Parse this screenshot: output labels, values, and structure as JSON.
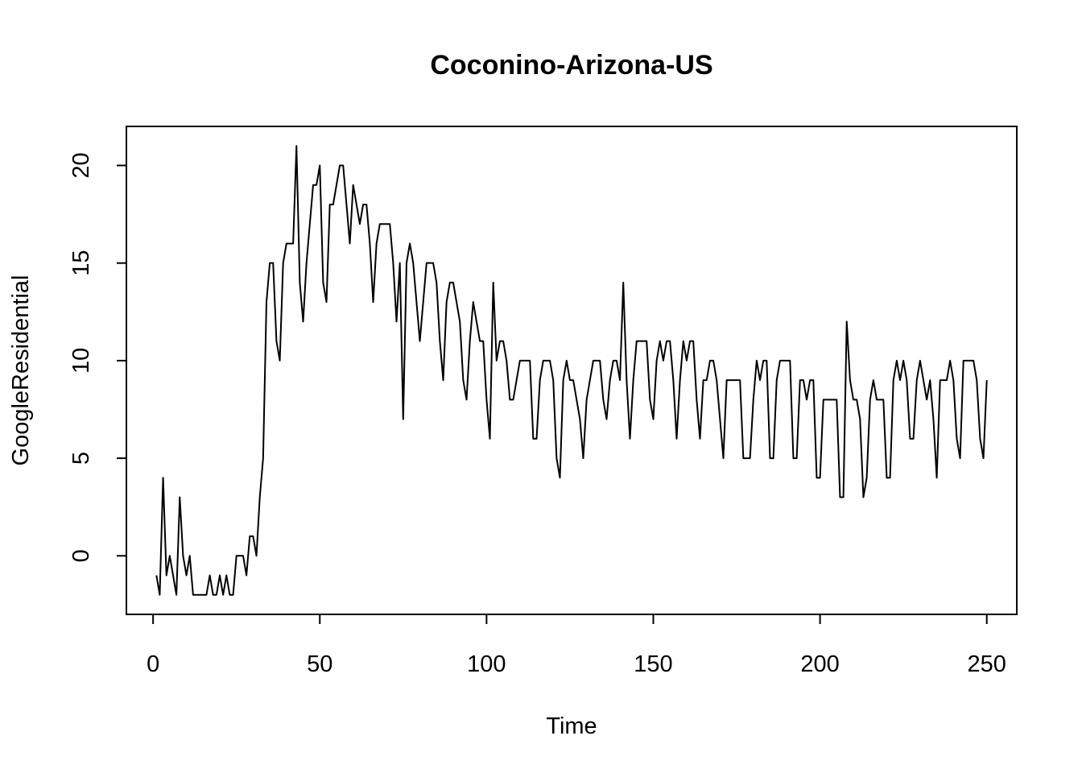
{
  "chart_data": {
    "type": "line",
    "title": "Coconino-Arizona-US",
    "xlabel": "Time",
    "ylabel": "GoogleResidential",
    "xlim": [
      -8,
      259
    ],
    "ylim": [
      -3,
      22
    ],
    "xticks": [
      0,
      50,
      100,
      150,
      200,
      250
    ],
    "yticks": [
      0,
      5,
      10,
      15,
      20
    ],
    "grid": false,
    "series": [
      {
        "name": "GoogleResidential",
        "x_start": 1,
        "values": [
          -1,
          -2,
          4,
          -1,
          0,
          -1,
          -2,
          3,
          0,
          -1,
          0,
          -2,
          -2,
          -2,
          -2,
          -2,
          -1,
          -2,
          -2,
          -1,
          -2,
          -1,
          -2,
          -2,
          0,
          0,
          0,
          -1,
          1,
          1,
          0,
          3,
          5,
          13,
          15,
          15,
          11,
          10,
          15,
          16,
          16,
          16,
          21,
          14,
          12,
          15,
          17,
          19,
          19,
          20,
          14,
          13,
          18,
          18,
          19,
          20,
          20,
          18,
          16,
          19,
          18,
          17,
          18,
          18,
          16,
          13,
          16,
          17,
          17,
          17,
          17,
          15,
          12,
          15,
          7,
          15,
          16,
          15,
          13,
          11,
          13,
          15,
          15,
          15,
          14,
          11,
          9,
          13,
          14,
          14,
          13,
          12,
          9,
          8,
          11,
          13,
          12,
          11,
          11,
          8,
          6,
          14,
          10,
          11,
          11,
          10,
          8,
          8,
          9,
          10,
          10,
          10,
          10,
          6,
          6,
          9,
          10,
          10,
          10,
          9,
          5,
          4,
          9,
          10,
          9,
          9,
          8,
          7,
          5,
          8,
          9,
          10,
          10,
          10,
          8,
          7,
          9,
          10,
          10,
          9,
          14,
          9,
          6,
          9,
          11,
          11,
          11,
          11,
          8,
          7,
          10,
          11,
          10,
          11,
          11,
          9,
          6,
          9,
          11,
          10,
          11,
          11,
          8,
          6,
          9,
          9,
          10,
          10,
          9,
          7,
          5,
          9,
          9,
          9,
          9,
          9,
          5,
          5,
          5,
          8,
          10,
          9,
          10,
          10,
          5,
          5,
          9,
          10,
          10,
          10,
          10,
          5,
          5,
          9,
          9,
          8,
          9,
          9,
          4,
          4,
          8,
          8,
          8,
          8,
          8,
          3,
          3,
          12,
          9,
          8,
          8,
          7,
          3,
          4,
          8,
          9,
          8,
          8,
          8,
          4,
          4,
          9,
          10,
          9,
          10,
          9,
          6,
          6,
          9,
          10,
          9,
          8,
          9,
          7,
          4,
          9,
          9,
          9,
          10,
          9,
          6,
          5,
          10,
          10,
          10,
          10,
          9,
          6,
          5,
          9
        ]
      }
    ]
  }
}
